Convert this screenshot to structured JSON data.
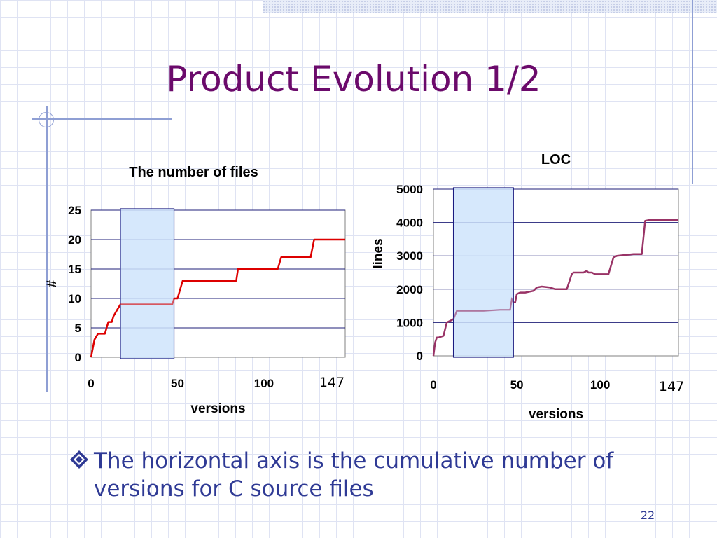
{
  "slide": {
    "title": "Product Evolution 1/2",
    "bullet": "The horizontal axis is the cumulative number of versions for C source files",
    "number": "22"
  },
  "colors": {
    "title": "#6b0a6b",
    "body_text": "#2f3a95",
    "files_line": "#dd0000",
    "loc_line": "#993366",
    "highlight_fill": "#cfe4fb",
    "highlight_stroke": "#1a1a80"
  },
  "icons": {
    "bullet": "diamond-bullet-icon"
  },
  "chart_data": [
    {
      "type": "line",
      "title": "The number of files",
      "xlabel": "versions",
      "ylabel": "#",
      "xlim": [
        0,
        147
      ],
      "ylim": [
        0,
        25
      ],
      "xticks": [
        "0",
        "50",
        "100"
      ],
      "yticks": [
        "0",
        "5",
        "10",
        "15",
        "20",
        "25"
      ],
      "max_version_annotation": "147",
      "highlight_range": [
        17,
        48
      ],
      "grid": "horizontal",
      "legend": "none",
      "series": [
        {
          "x": [
            0,
            2,
            4,
            8,
            9,
            10,
            12,
            13,
            15,
            17,
            20,
            30,
            40,
            46,
            47,
            48,
            50,
            52,
            53,
            60,
            70,
            84,
            85,
            90,
            100,
            108,
            110,
            120,
            127,
            129,
            135,
            145,
            147
          ],
          "y": [
            0,
            3,
            4,
            4,
            5,
            6,
            6,
            7,
            8,
            9,
            9,
            9,
            9,
            9,
            9,
            10,
            10,
            12,
            13,
            13,
            13,
            13,
            15,
            15,
            15,
            15,
            17,
            17,
            17,
            20,
            20,
            20,
            20
          ]
        }
      ]
    },
    {
      "type": "line",
      "title": "LOC",
      "xlabel": "versions",
      "ylabel": "lines",
      "xlim": [
        0,
        147
      ],
      "ylim": [
        0,
        5000
      ],
      "xticks": [
        "0",
        "50",
        "100"
      ],
      "yticks": [
        "0",
        "1000",
        "2000",
        "3000",
        "4000",
        "5000"
      ],
      "max_version_annotation": "147",
      "highlight_range": [
        12,
        48
      ],
      "grid": "horizontal",
      "legend": "none",
      "series": [
        {
          "x": [
            0,
            1,
            2,
            3,
            6,
            8,
            10,
            12,
            14,
            20,
            30,
            40,
            46,
            47,
            48,
            49,
            50,
            52,
            55,
            60,
            62,
            65,
            70,
            73,
            75,
            80,
            83,
            84,
            85,
            90,
            92,
            93,
            95,
            97,
            98,
            100,
            105,
            108,
            110,
            120,
            125,
            127,
            130,
            140,
            147
          ],
          "y": [
            0,
            400,
            550,
            550,
            600,
            1000,
            1050,
            1100,
            1350,
            1350,
            1350,
            1380,
            1380,
            1700,
            1600,
            1600,
            1850,
            1900,
            1900,
            1950,
            2050,
            2080,
            2050,
            2000,
            2000,
            2000,
            2450,
            2500,
            2500,
            2500,
            2550,
            2500,
            2500,
            2450,
            2450,
            2450,
            2450,
            2950,
            3000,
            3050,
            3050,
            4050,
            4080,
            4080,
            4080
          ]
        }
      ]
    }
  ]
}
